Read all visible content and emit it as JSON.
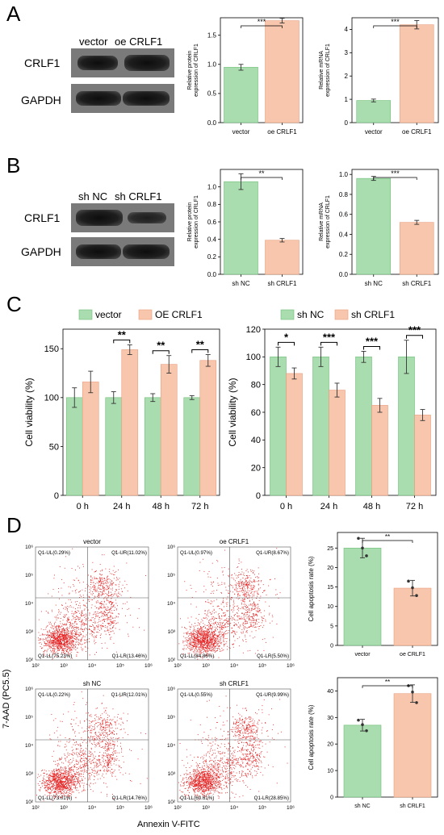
{
  "panels": {
    "A": {
      "letter": "A",
      "western_blot": {
        "lanes": [
          "vector",
          "oe CRLF1"
        ],
        "rows": [
          "CRLF1",
          "GAPDH"
        ]
      }
    },
    "B": {
      "letter": "B",
      "western_blot": {
        "lanes": [
          "sh NC",
          "sh CRLF1"
        ],
        "rows": [
          "CRLF1",
          "GAPDH"
        ]
      }
    },
    "C": {
      "letter": "C"
    },
    "D": {
      "letter": "D",
      "flow_axis_x": "Annexin V-FITC",
      "flow_axis_y": "7-AAD (PC5.5)",
      "flow_plots": [
        {
          "title": "vector",
          "UL": "Q1-UL(0.29%)",
          "UR": "Q1-UR(11.02%)",
          "LL": "Q1-LL(75.23%)",
          "LR": "Q1-LR(13.46%)"
        },
        {
          "title": "oe CRLF1",
          "UL": "Q1-UL(0.97%)",
          "UR": "Q1-UR(8.67%)",
          "LL": "Q1-LL(84.86%)",
          "LR": "Q1-LR(5.50%)"
        },
        {
          "title": "sh NC",
          "UL": "Q1-UL(0.22%)",
          "UR": "Q1-UR(12.01%)",
          "LL": "Q1-LL(73.01%)",
          "LR": "Q1-LR(14.76%)"
        },
        {
          "title": "sh CRLF1",
          "UL": "Q1-UL(0.55%)",
          "UR": "Q1-UR(9.99%)",
          "LL": "Q1-LL(60.61%)",
          "LR": "Q1-LR(28.85%)"
        }
      ],
      "flow_ticks": [
        "10²",
        "10³",
        "10⁴",
        "10⁵",
        "10⁶"
      ]
    }
  },
  "colors": {
    "green": "#a9dcae",
    "green_edge": "#6fbf78",
    "salmon": "#f8c6ad",
    "salmon_edge": "#e89e7e",
    "dot": "#e41e1e"
  },
  "chart_data": [
    {
      "id": "A1",
      "type": "bar",
      "categories": [
        "vector",
        "oe CRLF1"
      ],
      "values": [
        0.95,
        1.75
      ],
      "errors": [
        0.05,
        0.04
      ],
      "ylabel": [
        "Relative protein",
        "expression of CRLF1"
      ],
      "ylim": [
        0,
        1.8
      ],
      "yticks": [
        0,
        0.5,
        1.0,
        1.5
      ],
      "significance": "***"
    },
    {
      "id": "A2",
      "type": "bar",
      "categories": [
        "vector",
        "oe CRLF1"
      ],
      "values": [
        0.95,
        4.2
      ],
      "errors": [
        0.06,
        0.18
      ],
      "ylabel": [
        "Relative mRNA",
        "expression of CRLF1"
      ],
      "ylim": [
        0,
        4.5
      ],
      "yticks": [
        0,
        1,
        2,
        3,
        4
      ],
      "significance": "***"
    },
    {
      "id": "B1",
      "type": "bar",
      "categories": [
        "sh NC",
        "sh CRLF1"
      ],
      "values": [
        1.06,
        0.39
      ],
      "errors": [
        0.09,
        0.02
      ],
      "ylabel": [
        "Relative protein",
        "expression of CRLF1"
      ],
      "ylim": [
        0,
        1.2
      ],
      "yticks": [
        0,
        0.2,
        0.4,
        0.6,
        0.8,
        1.0
      ],
      "significance": "**"
    },
    {
      "id": "B2",
      "type": "bar",
      "categories": [
        "sh NC",
        "sh CRLF1"
      ],
      "values": [
        0.96,
        0.52
      ],
      "errors": [
        0.02,
        0.02
      ],
      "ylabel": [
        "Relative mRNA",
        "expression of CRLF1"
      ],
      "ylim": [
        0,
        1.05
      ],
      "yticks": [
        0,
        0.2,
        0.4,
        0.6,
        0.8,
        1.0
      ],
      "significance": "***"
    },
    {
      "id": "C1",
      "type": "bar",
      "categories": [
        "0 h",
        "24 h",
        "48 h",
        "72 h"
      ],
      "series": [
        {
          "name": "vector",
          "values": [
            100,
            100,
            100,
            100
          ],
          "errors": [
            10,
            6,
            4,
            2
          ]
        },
        {
          "name": "OE CRLF1",
          "values": [
            116,
            149,
            134,
            138
          ],
          "errors": [
            11,
            5,
            9,
            6
          ]
        }
      ],
      "ylabel": "Cell viability (%)",
      "ylim": [
        0,
        170
      ],
      "yticks": [
        0,
        50,
        100,
        150
      ],
      "significance": [
        "",
        "**",
        "**",
        "**"
      ]
    },
    {
      "id": "C2",
      "type": "bar",
      "categories": [
        "0 h",
        "24 h",
        "48 h",
        "72 h"
      ],
      "series": [
        {
          "name": "sh NC",
          "values": [
            100,
            100,
            100,
            100
          ],
          "errors": [
            7,
            7,
            4,
            12
          ]
        },
        {
          "name": "sh CRLF1",
          "values": [
            88,
            76,
            65,
            58
          ],
          "errors": [
            4,
            5,
            5,
            4
          ]
        }
      ],
      "ylabel": "Cell viability (%)",
      "ylim": [
        0,
        120
      ],
      "yticks": [
        0,
        20,
        40,
        60,
        80,
        100,
        120
      ],
      "significance": [
        "*",
        "***",
        "***",
        "***"
      ]
    },
    {
      "id": "D1",
      "type": "bar",
      "categories": [
        "vector",
        "oe CRLF1"
      ],
      "values": [
        25.0,
        14.7
      ],
      "errors": [
        2.5,
        2.0
      ],
      "points": [
        [
          27.5,
          25.0,
          23.0
        ],
        [
          16.5,
          14.8,
          12.8
        ]
      ],
      "ylabel": "Cell apoptosis rate (%)",
      "ylim": [
        0,
        29
      ],
      "yticks": [
        0,
        5,
        10,
        15,
        20,
        25
      ],
      "significance": "**"
    },
    {
      "id": "D2",
      "type": "bar",
      "categories": [
        "sh NC",
        "sh CRLF1"
      ],
      "values": [
        27.1,
        39.0
      ],
      "errors": [
        2.2,
        3.3
      ],
      "points": [
        [
          29.0,
          27.3,
          25.0
        ],
        [
          42.0,
          39.6,
          35.6
        ]
      ],
      "ylabel": "Cell apoptosis rate (%)",
      "ylim": [
        0,
        45
      ],
      "yticks": [
        0,
        10,
        20,
        30,
        40
      ],
      "significance": "**"
    }
  ]
}
